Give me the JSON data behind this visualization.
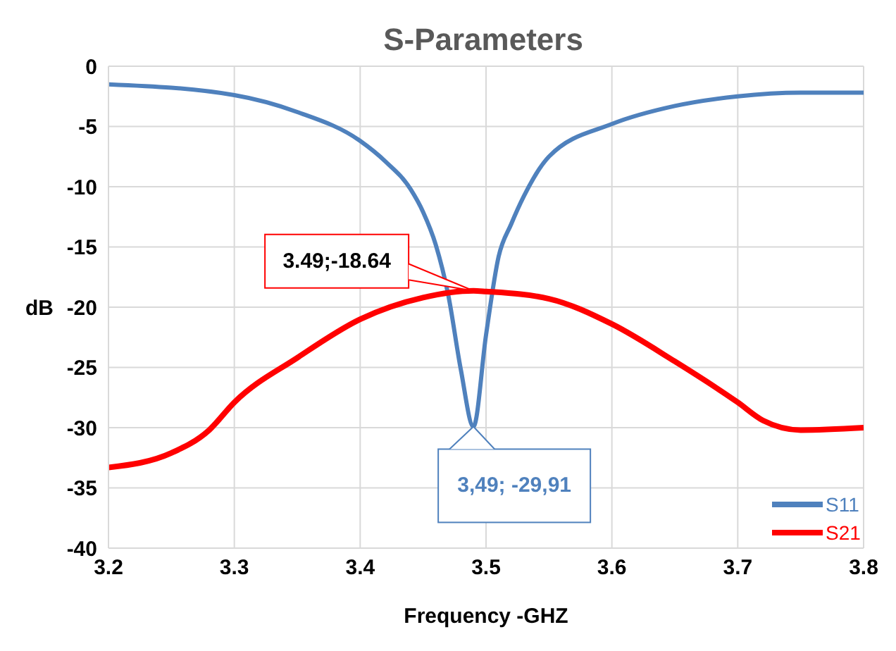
{
  "chart_data": {
    "type": "line",
    "title": "S-Parameters",
    "xlabel": "Frequency -GHZ",
    "ylabel": "dB",
    "xlim": [
      3.2,
      3.8
    ],
    "xticks": [
      3.2,
      3.3,
      3.4,
      3.5,
      3.6,
      3.7,
      3.8
    ],
    "ylim": [
      -40,
      0
    ],
    "yticks": [
      -40,
      -35,
      -30,
      -25,
      -20,
      -15,
      -10,
      -5,
      0
    ],
    "grid": true,
    "legend": "bottom right",
    "marker": "none",
    "line_style": "solid",
    "series": [
      {
        "name": "S11",
        "color": "#4f81bd",
        "x": [
          3.2,
          3.3,
          3.35,
          3.4,
          3.42,
          3.44,
          3.45,
          3.46,
          3.47,
          3.48,
          3.49,
          3.5,
          3.51,
          3.52,
          3.53,
          3.55,
          3.6,
          3.65,
          3.7,
          3.75,
          3.8
        ],
        "values": [
          -1.5,
          -2.4,
          -3.8,
          -6.2,
          -7.9,
          -10.2,
          -12.1,
          -14.8,
          -19,
          -25.2,
          -29.91,
          -22.3,
          -15.8,
          -13.1,
          -10.8,
          -7.5,
          -4.8,
          -3.3,
          -2.5,
          -2.2,
          -2.2
        ]
      },
      {
        "name": "S21",
        "color": "#ff0000",
        "x": [
          3.2,
          3.25,
          3.28,
          3.3,
          3.35,
          3.4,
          3.45,
          3.49,
          3.5,
          3.55,
          3.6,
          3.65,
          3.7,
          3.72,
          3.75,
          3.8
        ],
        "values": [
          -33.3,
          -32.1,
          -30.2,
          -27.9,
          -24.2,
          -21,
          -19.2,
          -18.64,
          -18.7,
          -19.3,
          -21.4,
          -24.5,
          -27.9,
          -29.4,
          -30.2,
          -30
        ]
      }
    ],
    "annotations": [
      {
        "text": "3.49;-18.64",
        "x": 3.49,
        "y": -18.64
      },
      {
        "text": "3,49; -29,91",
        "x": 3.49,
        "y": -29.91
      }
    ]
  }
}
